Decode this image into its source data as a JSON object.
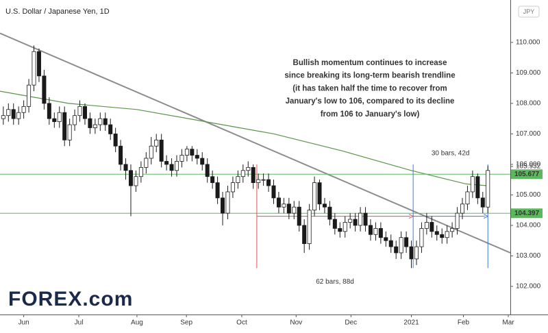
{
  "chart_data": {
    "type": "candlestick",
    "title": "U.S. Dollar / Japanese Yen, 1D",
    "currency": "JPY",
    "logo": "FOREX.com",
    "x": [
      0,
      2,
      4,
      6,
      8,
      10,
      12,
      14,
      16,
      18,
      20,
      22,
      24,
      26,
      28,
      30,
      32,
      34,
      36,
      38,
      40,
      42,
      44,
      46,
      48,
      50,
      52,
      54,
      56,
      58,
      60,
      62,
      64,
      66,
      68,
      70,
      72,
      74,
      76,
      78,
      80,
      82,
      84,
      86,
      88,
      90,
      92,
      94,
      96,
      98,
      100,
      102,
      104,
      106,
      108,
      110,
      112,
      114,
      116,
      118,
      120,
      122,
      124,
      126,
      128,
      130,
      132,
      134,
      136,
      138,
      140,
      142,
      144,
      146,
      148,
      150,
      152,
      154,
      156,
      158,
      160,
      162,
      164,
      166,
      168,
      170,
      172,
      174,
      176,
      178,
      180,
      182,
      184,
      186,
      188,
      190
    ],
    "open": [
      107.5,
      107.6,
      107.8,
      107.5,
      107.7,
      107.9,
      108.6,
      109.7,
      108.9,
      108.0,
      107.5,
      107.4,
      107.7,
      106.8,
      107.3,
      107.6,
      107.9,
      107.5,
      107.2,
      107.3,
      107.5,
      107.3,
      107.0,
      106.6,
      106.0,
      105.8,
      105.3,
      105.6,
      105.9,
      106.2,
      106.6,
      106.8,
      106.1,
      106.0,
      105.8,
      106.1,
      106.3,
      106.5,
      106.3,
      106.2,
      106.0,
      105.6,
      105.4,
      104.9,
      104.4,
      105.1,
      105.4,
      105.6,
      105.8,
      105.9,
      105.4,
      105.5,
      105.5,
      105.3,
      104.9,
      104.6,
      104.7,
      104.4,
      104.6,
      104.0,
      103.4,
      104.5,
      105.4,
      104.7,
      104.6,
      104.2,
      103.9,
      103.8,
      104.1,
      104.2,
      104.0,
      104.4,
      104.0,
      103.7,
      103.9,
      103.6,
      103.5,
      103.3,
      103.1,
      103.6,
      103.3,
      102.9,
      103.3,
      103.9,
      104.1,
      103.8,
      103.7,
      103.6,
      103.8,
      103.9,
      104.4,
      104.7,
      105.1,
      105.6,
      104.9,
      104.6
    ],
    "high": [
      107.9,
      108.0,
      108.0,
      107.9,
      108.1,
      108.8,
      109.9,
      109.8,
      109.1,
      108.2,
      107.7,
      107.9,
      107.9,
      107.5,
      107.8,
      108.1,
      108.0,
      107.7,
      107.5,
      107.7,
      107.7,
      107.5,
      107.2,
      106.8,
      106.2,
      106.0,
      105.8,
      106.1,
      106.4,
      106.9,
      107.0,
      107.0,
      106.3,
      106.2,
      106.3,
      106.5,
      106.6,
      106.6,
      106.5,
      106.4,
      106.2,
      105.8,
      105.6,
      105.1,
      105.3,
      105.6,
      105.8,
      106.0,
      106.1,
      106.0,
      105.7,
      105.7,
      105.7,
      105.5,
      105.1,
      104.9,
      104.9,
      104.8,
      104.8,
      104.2,
      104.7,
      105.6,
      105.5,
      104.9,
      104.8,
      104.4,
      104.1,
      104.3,
      104.4,
      104.4,
      104.6,
      104.6,
      104.2,
      104.1,
      104.1,
      103.8,
      103.7,
      103.5,
      103.8,
      103.8,
      103.5,
      103.5,
      104.1,
      104.4,
      104.3,
      104.0,
      103.9,
      104.0,
      104.1,
      104.6,
      104.9,
      105.3,
      105.8,
      105.7,
      105.1,
      105.95
    ],
    "low": [
      107.3,
      107.4,
      107.3,
      107.3,
      107.5,
      107.7,
      108.4,
      108.7,
      107.8,
      107.3,
      107.2,
      107.2,
      106.6,
      106.6,
      107.1,
      107.4,
      107.3,
      107.0,
      107.0,
      107.1,
      107.1,
      106.8,
      106.4,
      105.8,
      105.5,
      104.3,
      105.1,
      105.4,
      105.7,
      106.0,
      106.4,
      105.9,
      105.8,
      105.6,
      105.6,
      105.9,
      106.1,
      106.1,
      106.0,
      105.8,
      105.4,
      105.2,
      104.7,
      104.0,
      104.2,
      104.9,
      105.2,
      105.4,
      105.6,
      105.2,
      105.2,
      105.3,
      105.1,
      104.7,
      104.4,
      104.4,
      104.2,
      104.2,
      103.8,
      103.1,
      103.2,
      104.3,
      104.5,
      104.4,
      104.0,
      103.7,
      103.6,
      103.6,
      103.9,
      103.8,
      103.8,
      103.8,
      103.5,
      103.5,
      103.4,
      103.3,
      103.1,
      102.9,
      102.9,
      103.1,
      102.6,
      102.7,
      103.1,
      103.7,
      103.6,
      103.5,
      103.4,
      103.4,
      103.6,
      103.7,
      104.2,
      104.5,
      104.9,
      104.7,
      104.4,
      104.4
    ],
    "close": [
      107.6,
      107.8,
      107.5,
      107.7,
      107.9,
      108.6,
      109.7,
      108.9,
      108.0,
      107.5,
      107.4,
      107.7,
      106.8,
      107.3,
      107.6,
      107.9,
      107.5,
      107.2,
      107.3,
      107.5,
      107.3,
      107.0,
      106.6,
      106.0,
      105.8,
      105.3,
      105.6,
      105.9,
      106.2,
      106.6,
      106.8,
      106.1,
      106.0,
      105.8,
      106.1,
      106.3,
      106.5,
      106.3,
      106.2,
      106.0,
      105.6,
      105.4,
      104.9,
      104.4,
      105.1,
      105.4,
      105.6,
      105.8,
      105.9,
      105.4,
      105.5,
      105.5,
      105.3,
      104.9,
      104.6,
      104.7,
      104.4,
      104.6,
      104.0,
      103.4,
      104.5,
      105.4,
      104.7,
      104.6,
      104.2,
      103.9,
      103.8,
      104.1,
      104.2,
      104.0,
      104.4,
      104.0,
      103.7,
      103.9,
      103.6,
      103.5,
      103.3,
      103.1,
      103.6,
      103.3,
      102.9,
      103.3,
      103.9,
      104.1,
      103.8,
      103.7,
      103.6,
      103.8,
      103.9,
      104.4,
      104.7,
      105.1,
      105.6,
      104.9,
      104.6,
      105.8
    ],
    "up_color": "#ffffff",
    "down_color": "#1a1a1a",
    "xlim": [
      -1.3,
      198.8
    ],
    "ylim": [
      101.1,
      111.39
    ],
    "xticks": [
      {
        "value": 8,
        "label": "Jun"
      },
      {
        "value": 29.6,
        "label": "Jul"
      },
      {
        "value": 52.4,
        "label": "Aug"
      },
      {
        "value": 71.8,
        "label": "Sep"
      },
      {
        "value": 93.5,
        "label": "Oct"
      },
      {
        "value": 114.8,
        "label": "Nov"
      },
      {
        "value": 136.3,
        "label": "Dec"
      },
      {
        "value": 160,
        "label": "2021"
      },
      {
        "value": 180.4,
        "label": "Feb"
      },
      {
        "value": 198,
        "label": "Mar"
      }
    ],
    "yticks": [
      {
        "value": 102,
        "label": "102.000"
      },
      {
        "value": 103,
        "label": "103.000"
      },
      {
        "value": 104,
        "label": "104.000"
      },
      {
        "value": 105,
        "label": "105.000"
      },
      {
        "value": 106,
        "label": "106.000"
      },
      {
        "value": 107,
        "label": "107.000"
      },
      {
        "value": 108,
        "label": "108.000"
      },
      {
        "value": 109,
        "label": "109.000"
      },
      {
        "value": 110,
        "label": "110.000"
      }
    ],
    "moving_average": {
      "color": "#5b9448",
      "x": [
        -1.3,
        25.6,
        52.4,
        79.3,
        106.1,
        133,
        159.9,
        181.4,
        190
      ],
      "values": [
        108.4,
        108.0,
        107.8,
        107.4,
        107.0,
        106.44,
        105.8,
        105.36,
        105.3
      ]
    },
    "trendline": {
      "color": "#8c8c8c",
      "x": [
        -1.3,
        198.8
      ],
      "values": [
        110.3,
        103.1
      ]
    },
    "levels": [
      {
        "value": 105.677,
        "label": "105.677"
      },
      {
        "value": 104.397,
        "label": "104.397"
      }
    ],
    "level_color": "#5cb85c",
    "last_price": {
      "value": 105.932,
      "label": "105.932"
    },
    "measures": [
      {
        "label": "62 bars, 88d",
        "color": "#e05050",
        "x": [
          99.4,
          160.7
        ],
        "level": 104.3,
        "span": [
          106.0,
          102.6
        ],
        "verticals": [
          0
        ],
        "label_position": "below"
      },
      {
        "label": "30 bars, 42d",
        "color": "#3a7bd5",
        "x": [
          160.7,
          190
        ],
        "level": 104.3,
        "span": [
          106.0,
          102.6
        ],
        "verticals": [
          0,
          1
        ],
        "label_position": "above"
      }
    ],
    "annotation": {
      "color": "#2f6ad8",
      "lines": [
        "Bullish momentum continues to increase",
        "since breaking its long-term bearish trendline",
        "(it has taken half the time to recover from",
        "January's low to 106, compared to its decline",
        "from 106 to January's low)"
      ]
    }
  }
}
